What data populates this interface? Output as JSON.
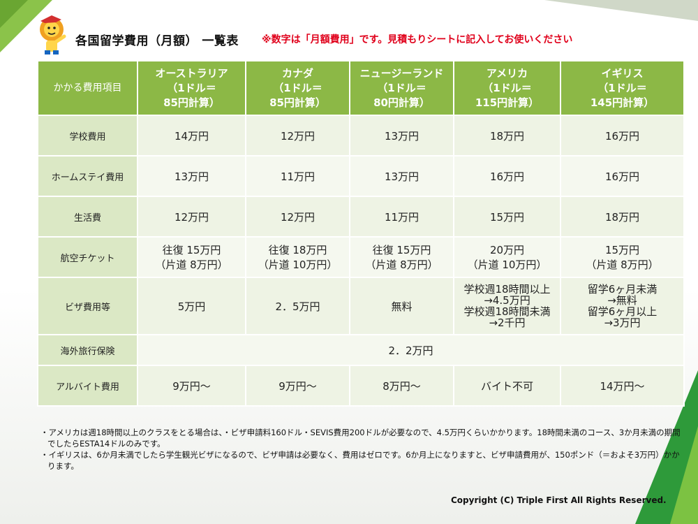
{
  "title": "各国留学費用（月額） 一覧表",
  "note": "※数字は「月額費用」です。見積もりシートに記入してお使いください",
  "table": {
    "corner": "かかる費用項目",
    "columns": [
      {
        "line1": "オーストラリア",
        "line2": "（1ドル＝",
        "line3": "85円計算）"
      },
      {
        "line1": "カナダ",
        "line2": "（1ドル＝",
        "line3": "85円計算）"
      },
      {
        "line1": "ニュージーランド",
        "line2": "（1ドル＝",
        "line3": "80円計算）"
      },
      {
        "line1": "アメリカ",
        "line2": "（1ドル＝",
        "line3": "115円計算）"
      },
      {
        "line1": "イギリス",
        "line2": "（1ドル＝",
        "line3": "145円計算）"
      }
    ],
    "rows": [
      {
        "label": "学校費用",
        "cells": [
          "14万円",
          "12万円",
          "13万円",
          "18万円",
          "16万円"
        ]
      },
      {
        "label": "ホームステイ費用",
        "cells": [
          "13万円",
          "11万円",
          "13万円",
          "16万円",
          "16万円"
        ]
      },
      {
        "label": "生活費",
        "cells": [
          "12万円",
          "12万円",
          "11万円",
          "15万円",
          "18万円"
        ]
      },
      {
        "label": "航空チケット",
        "cells": [
          [
            "往復 15万円",
            "（片道 8万円）"
          ],
          [
            "往復 18万円",
            "（片道 10万円）"
          ],
          [
            "往復 15万円",
            "（片道 8万円）"
          ],
          [
            "20万円",
            "（片道 10万円）"
          ],
          [
            "15万円",
            "（片道 8万円）"
          ]
        ]
      },
      {
        "label": "ビザ費用等",
        "cells": [
          "5万円",
          "2．5万円",
          "無料",
          [
            "学校週18時間以上",
            "→4.5万円",
            "学校週18時間未満",
            "→2千円"
          ],
          [
            "留学6ヶ月未満",
            "→無料",
            "留学6ヶ月以上",
            "→3万円"
          ]
        ]
      },
      {
        "label": "海外旅行保険",
        "merged": "2．2万円"
      },
      {
        "label": "アルバイト費用",
        "cells": [
          "9万円～",
          "9万円～",
          "8万円～",
          "バイト不可",
          "14万円～"
        ]
      }
    ]
  },
  "footnotes": [
    "・アメリカは週18時間以上のクラスをとる場合は、・ビザ申請料160ドル・SEVIS費用200ドルが必要なので、4.5万円くらいかかります。18時間未満のコース、3か月未満の期間でしたらESTA14ドルのみです。",
    "・イギリスは、6か月未満でしたら学生観光ビザになるので、ビザ申請は必要なく、費用はゼロです。6か月上になりますと、ビザ申請費用が、150ポンド（＝およそ3万円）かかります。"
  ],
  "copyright": "Copyright (C)  Triple First  All Rights Reserved.",
  "colors": {
    "header_green": "#8cb846",
    "row_label_bg": "#dbe8c5",
    "cell_bg": "#eef3e4",
    "note_red": "#e0001b"
  },
  "icons": {
    "mascot": "lion-mascot-icon"
  }
}
